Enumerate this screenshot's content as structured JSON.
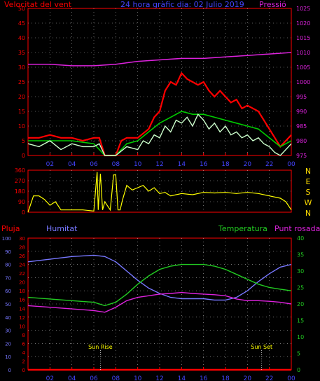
{
  "header": {
    "left_label": "Velocitat del vent",
    "title": "24 hora gràfic dia: 02 Julio 2019",
    "right_label": "Pressió"
  },
  "colors": {
    "bg": "#000000",
    "axis": "#ff0000",
    "grid": "#ffffff",
    "wind_gust": "#ff0000",
    "wind_avg": "#00cc00",
    "wind_speed": "#ccffcc",
    "pressure": "#dd22dd",
    "direction": "#ffff00",
    "humidity": "#7777ff",
    "temperature": "#22cc22",
    "dewpoint": "#dd22dd",
    "rain": "#ff0000",
    "right_axis_label": "#ffdd00"
  },
  "x_ticks": [
    "02",
    "04",
    "06",
    "08",
    "10",
    "12",
    "14",
    "16",
    "18",
    "20",
    "22",
    "00"
  ],
  "chart_data": [
    {
      "type": "line",
      "name": "wind-pressure",
      "x_range_hours": [
        0,
        24
      ],
      "left_axis": {
        "ylim": [
          0,
          50
        ],
        "ticks": [
          0,
          5,
          10,
          15,
          20,
          25,
          30,
          35,
          40,
          45,
          50
        ]
      },
      "right_axis": {
        "ylim": [
          975,
          1025
        ],
        "ticks": [
          975,
          980,
          985,
          990,
          995,
          1000,
          1005,
          1010,
          1015,
          1020,
          1025
        ]
      },
      "pressure": {
        "x": [
          0,
          2,
          4,
          6,
          8,
          10,
          12,
          14,
          16,
          18,
          20,
          22,
          24
        ],
        "y": [
          1006,
          1006,
          1005.5,
          1005.5,
          1006,
          1007,
          1007.5,
          1008,
          1008,
          1008.5,
          1009,
          1009.5,
          1010
        ]
      },
      "wind_gust": {
        "x": [
          0,
          1,
          2,
          3,
          4,
          5,
          6,
          6.5,
          7,
          8,
          8.5,
          9,
          10,
          11,
          11.5,
          12,
          12.5,
          13,
          13.5,
          14,
          14.5,
          15,
          15.5,
          16,
          16.5,
          17,
          17.5,
          18,
          18.5,
          19,
          19.5,
          20,
          20.5,
          21,
          21.5,
          22,
          22.5,
          23,
          23.5,
          24
        ],
        "y": [
          6,
          6,
          7,
          6,
          6,
          5,
          6,
          6,
          0,
          0,
          5,
          6,
          6,
          9,
          13,
          15,
          22,
          25,
          24,
          28,
          26,
          25,
          24,
          25,
          22,
          20,
          22,
          20,
          18,
          19,
          16,
          17,
          16,
          15,
          12,
          9,
          6,
          3,
          5,
          7
        ]
      },
      "wind_avg": {
        "x": [
          0,
          2,
          4,
          6,
          7,
          8,
          9,
          10,
          11,
          12,
          13,
          14,
          15,
          16,
          17,
          18,
          19,
          20,
          21,
          22,
          23,
          24
        ],
        "y": [
          5,
          5,
          5,
          4,
          0,
          0,
          4,
          5,
          8,
          11,
          13,
          15,
          14,
          14,
          13,
          12,
          11,
          10,
          9,
          6,
          3,
          5
        ]
      },
      "wind_speed": {
        "x": [
          0,
          1,
          2,
          3,
          4,
          5,
          6,
          6.5,
          7,
          8,
          9,
          10,
          10.5,
          11,
          11.5,
          12,
          12.5,
          13,
          13.5,
          14,
          14.5,
          15,
          15.5,
          16,
          16.5,
          17,
          17.5,
          18,
          18.5,
          19,
          19.5,
          20,
          20.5,
          21,
          21.5,
          22,
          22.5,
          23,
          23.5,
          24
        ],
        "y": [
          4,
          3,
          5,
          2,
          4,
          3,
          3,
          4,
          0,
          0,
          3,
          2,
          5,
          4,
          7,
          6,
          10,
          8,
          12,
          11,
          13,
          10,
          14,
          12,
          9,
          11,
          8,
          10,
          7,
          8,
          6,
          7,
          5,
          6,
          4,
          3,
          1,
          0,
          2,
          4
        ]
      }
    },
    {
      "type": "line",
      "name": "wind-direction",
      "x_range_hours": [
        0,
        24
      ],
      "left_axis": {
        "ylim": [
          0,
          360
        ],
        "ticks": [
          0,
          90,
          180,
          270,
          360
        ]
      },
      "right_axis_labels": [
        "N",
        "W",
        "S",
        "E",
        "N"
      ],
      "direction": {
        "x": [
          0,
          0.5,
          1,
          1.5,
          2,
          2.5,
          3,
          4,
          5,
          6,
          6.3,
          6.4,
          6.6,
          6.8,
          7,
          7.5,
          7.8,
          8,
          8.2,
          8.4,
          8.6,
          9,
          9.5,
          10,
          10.5,
          11,
          11.5,
          12,
          12.5,
          13,
          14,
          15,
          16,
          17,
          18,
          19,
          20,
          21,
          22,
          23,
          23.5,
          24
        ],
        "y": [
          0,
          140,
          140,
          110,
          60,
          90,
          20,
          20,
          20,
          10,
          345,
          20,
          330,
          20,
          90,
          20,
          320,
          320,
          20,
          20,
          100,
          230,
          190,
          210,
          230,
          180,
          210,
          160,
          170,
          140,
          160,
          150,
          170,
          165,
          170,
          160,
          170,
          160,
          140,
          120,
          90,
          20
        ]
      }
    },
    {
      "type": "line",
      "name": "humidity-temperature",
      "x_range_hours": [
        0,
        24
      ],
      "labels": [
        "Pluja",
        "Humitat",
        "Temperatura",
        "Punt rosada"
      ],
      "axis_rain": {
        "ylim": [
          0,
          100
        ],
        "ticks": [
          0,
          10,
          20,
          30,
          40,
          50,
          60,
          70,
          80,
          90,
          100
        ]
      },
      "axis_left_temp": {
        "ylim": [
          0,
          30
        ],
        "ticks": [
          0,
          2,
          4,
          6,
          8,
          10,
          12,
          14,
          16,
          18,
          20,
          22,
          24,
          26,
          28,
          30
        ]
      },
      "axis_right_temp": {
        "ylim": [
          0,
          40
        ],
        "ticks": [
          0,
          5,
          10,
          15,
          20,
          25,
          30,
          35,
          40
        ]
      },
      "annotations": [
        "Sun Rise",
        "Sun Set"
      ],
      "humidity": {
        "x": [
          0,
          2,
          4,
          6,
          7,
          8,
          9,
          10,
          11,
          12,
          13,
          14,
          15,
          16,
          17,
          18,
          19,
          20,
          21,
          22,
          23,
          24
        ],
        "y": [
          82,
          84,
          86,
          87,
          86,
          82,
          75,
          68,
          62,
          58,
          55,
          54,
          54,
          54,
          53,
          53,
          55,
          60,
          67,
          73,
          78,
          80
        ]
      },
      "temperature": {
        "x": [
          0,
          2,
          4,
          6,
          7,
          8,
          9,
          10,
          11,
          12,
          13,
          14,
          15,
          16,
          17,
          18,
          19,
          20,
          21,
          22,
          23,
          24
        ],
        "y": [
          22,
          21.5,
          21,
          20.5,
          19.5,
          20.5,
          23,
          26,
          28.5,
          30.5,
          31.5,
          32,
          32,
          32,
          31.5,
          30.5,
          29,
          27.5,
          26,
          25,
          24.5,
          24
        ]
      },
      "dewpoint": {
        "x": [
          0,
          2,
          4,
          6,
          7,
          8,
          9,
          10,
          11,
          12,
          13,
          14,
          15,
          16,
          17,
          18,
          19,
          20,
          21,
          22,
          23,
          24
        ],
        "y": [
          19.5,
          19,
          18.5,
          18,
          17.5,
          19,
          21,
          22,
          22.5,
          23,
          23.2,
          23.5,
          23.2,
          23,
          22.8,
          22.5,
          21.5,
          21,
          21,
          20.8,
          20.5,
          20
        ]
      },
      "rain": {
        "x": [
          0,
          24
        ],
        "y": [
          0,
          0
        ]
      },
      "sun_events": {
        "sun_rise_hour": 6.6,
        "sun_set_hour": 21.3
      }
    }
  ]
}
